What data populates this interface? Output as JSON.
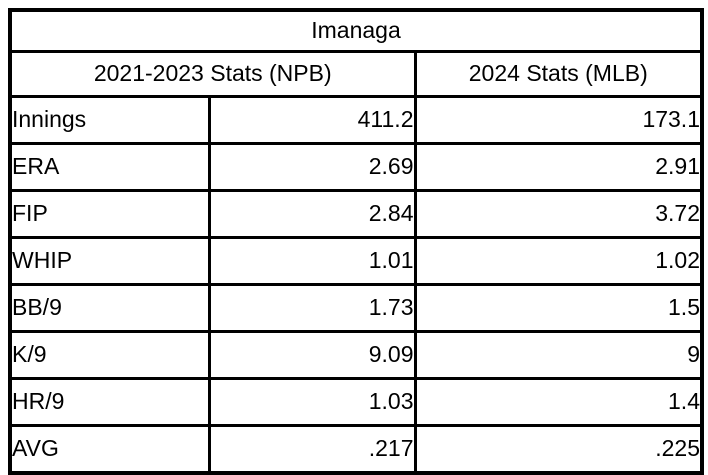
{
  "colors": {
    "border": "#000000",
    "background": "#ffffff",
    "text": "#000000"
  },
  "chart_data": {
    "type": "table",
    "title": "Imanaga",
    "columns": [
      "",
      "2021-2023 Stats (NPB)",
      "2024 Stats (MLB)"
    ],
    "rows": [
      [
        "Innings",
        "411.2",
        "173.1"
      ],
      [
        "ERA",
        "2.69",
        "2.91"
      ],
      [
        "FIP",
        "2.84",
        "3.72"
      ],
      [
        "WHIP",
        "1.01",
        "1.02"
      ],
      [
        "BB/9",
        "1.73",
        "1.5"
      ],
      [
        "K/9",
        "9.09",
        "9"
      ],
      [
        "HR/9",
        "1.03",
        "1.4"
      ],
      [
        "AVG",
        ".217",
        ".225"
      ]
    ]
  }
}
